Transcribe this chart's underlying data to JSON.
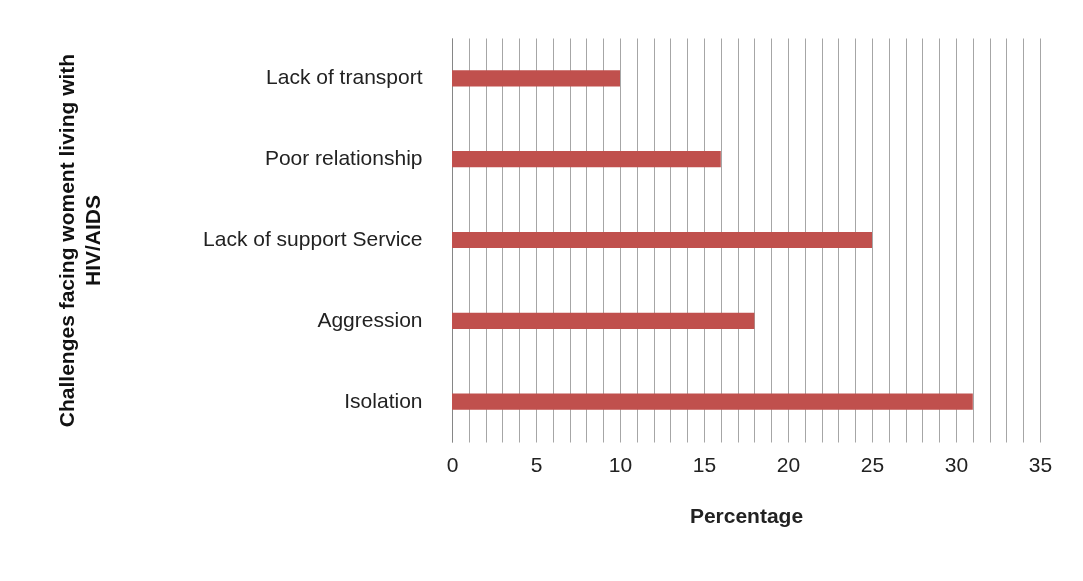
{
  "chart_data": {
    "type": "bar",
    "orientation": "horizontal",
    "xlabel": "Percentage",
    "ylabel": "Challenges facing woment living with HIV/AIDS",
    "categories": [
      "Lack of transport",
      "Poor relationship",
      "Lack of support Service",
      "Aggression",
      "Isolation"
    ],
    "values": [
      10,
      16,
      25,
      18,
      31
    ],
    "color": "#c0504d",
    "xlim": [
      0,
      35
    ],
    "xticks": [
      0,
      {
        "value": 1,
        "label": null
      },
      {
        "value": 2,
        "label": null
      },
      {
        "value": 3,
        "label": null
      },
      {
        "value": 4,
        "label": null
      },
      5,
      {
        "value": 6,
        "label": null
      },
      {
        "value": 7,
        "label": null
      },
      {
        "value": 8,
        "label": null
      },
      {
        "value": 9,
        "label": null
      },
      10,
      {
        "value": 11,
        "label": null
      },
      {
        "value": 12,
        "label": null
      },
      {
        "value": 13,
        "label": null
      },
      {
        "value": 14,
        "label": null
      },
      15,
      {
        "value": 16,
        "label": null
      },
      {
        "value": 17,
        "label": null
      },
      {
        "value": 18,
        "label": null
      },
      {
        "value": 19,
        "label": null
      },
      20,
      {
        "value": 21,
        "label": null
      },
      {
        "value": 22,
        "label": null
      },
      {
        "value": 23,
        "label": null
      },
      {
        "value": 24,
        "label": null
      },
      25,
      {
        "value": 26,
        "label": null
      },
      {
        "value": 27,
        "label": null
      },
      {
        "value": 28,
        "label": null
      },
      {
        "value": 29,
        "label": null
      },
      30,
      {
        "value": 31,
        "label": null
      },
      {
        "value": 32,
        "label": null
      },
      {
        "value": 33,
        "label": null
      },
      {
        "value": 34,
        "label": null
      },
      35
    ],
    "grid": "x"
  }
}
